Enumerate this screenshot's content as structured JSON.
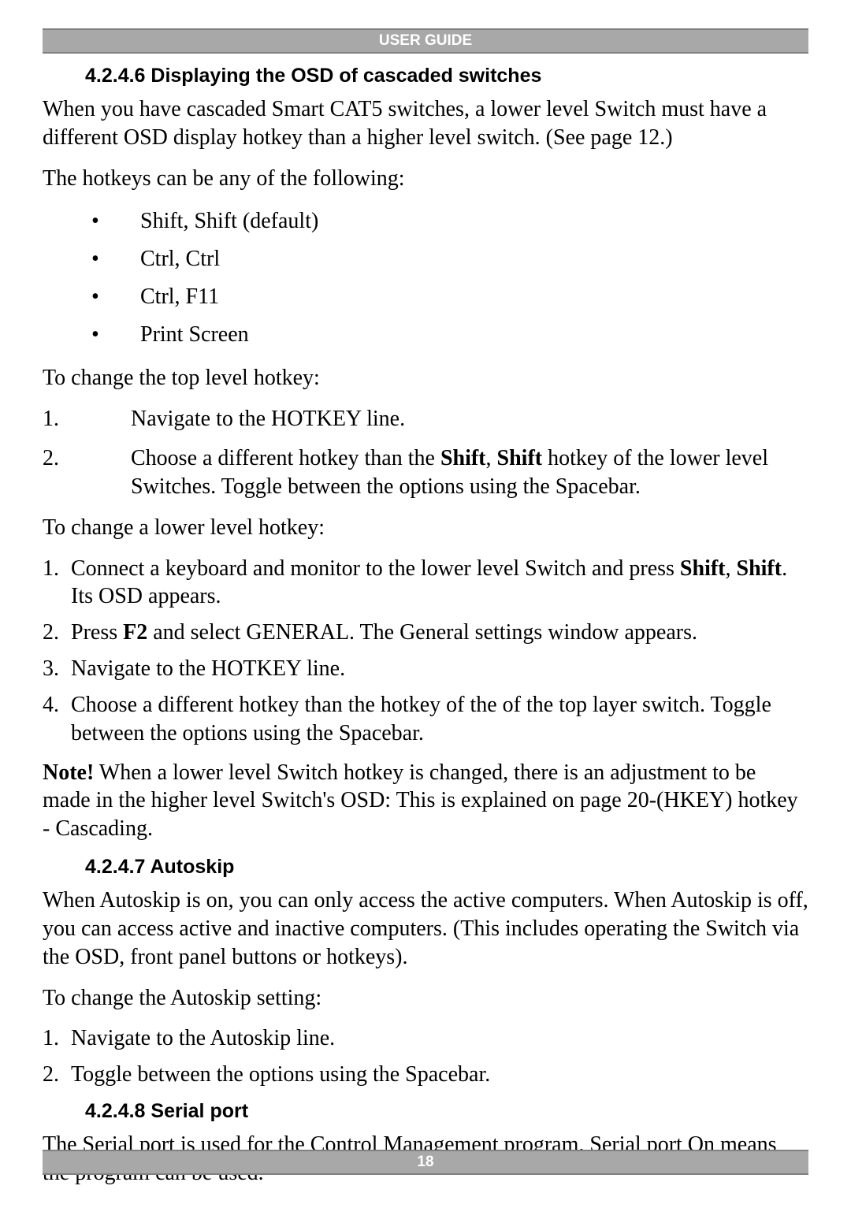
{
  "header": {
    "title": "USER GUIDE"
  },
  "footer": {
    "page_number": "18"
  },
  "s1": {
    "heading": "4.2.4.6 Displaying the OSD of cascaded switches",
    "p1": "When you have cascaded Smart CAT5 switches, a lower level Switch must have a different OSD display hotkey than a higher level switch. (See page 12.)",
    "p2": "The hotkeys can be any of the following:",
    "bullets": {
      "b1": "Shift, Shift (default)",
      "b2": "Ctrl, Ctrl",
      "b3": "Ctrl, F11",
      "b4": "Print Screen"
    },
    "p3": "To change the top level hotkey:",
    "top_steps": {
      "n1": "1.",
      "t1": "Navigate to the HOTKEY line.",
      "n2": "2.",
      "t2a": "Choose a different hotkey than the ",
      "t2b": "Shift",
      "t2c": ", ",
      "t2d": "Shift",
      "t2e": " hotkey of the lower level Switches. Toggle between the options using the Spacebar."
    },
    "p4": "To change a lower level hotkey:",
    "low_steps": {
      "n1": "1.",
      "t1a": "Connect a keyboard and monitor to the lower level Switch and press ",
      "t1b": "Shift",
      "t1c": ", ",
      "t1d": "Shift",
      "t1e": ". Its OSD appears.",
      "n2": "2.",
      "t2a": "Press ",
      "t2b": "F2",
      "t2c": " and select GENERAL. The General settings window appears.",
      "n3": "3.",
      "t3": "Navigate to the HOTKEY line.",
      "n4": "4.",
      "t4": "Choose a different hotkey than the hotkey of the of the top layer switch. Toggle between the options using the Spacebar."
    },
    "note_label": "Note!",
    "note_rest": " When a lower level Switch hotkey is changed, there is an adjustment to be made in the higher level Switch's OSD: This is explained on page 20-(HKEY) hotkey - Cascading."
  },
  "s2": {
    "heading": "4.2.4.7 Autoskip",
    "p1": "When Autoskip is on, you can only access the active computers. When Autoskip is off, you can access active and inactive computers. (This includes operating the Switch via the OSD, front panel buttons or hotkeys).",
    "p2": "To change the Autoskip setting:",
    "steps": {
      "n1": "1.",
      "t1": "Navigate to the Autoskip line.",
      "n2": "2.",
      "t2": "Toggle between the options using the Spacebar."
    }
  },
  "s3": {
    "heading": "4.2.4.8 Serial port",
    "p1": "The Serial port is used for the Control Management program. Serial port On means the program can be used."
  }
}
